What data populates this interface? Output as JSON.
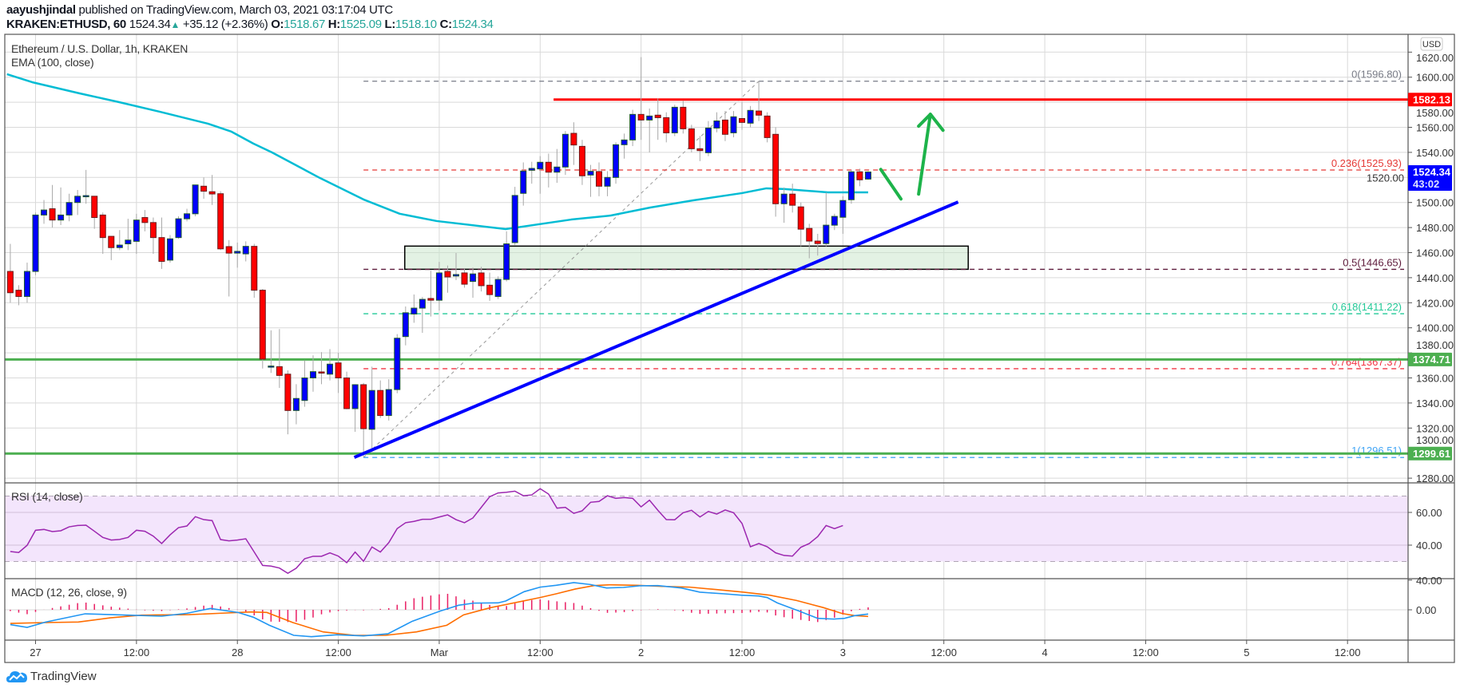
{
  "header": {
    "author": "aayushjindal",
    "published": "published on TradingView.com, March 03, 2021 03:17:04 UTC",
    "symbol": "KRAKEN:ETHUSD, 60",
    "last": "1524.34",
    "change": "+35.12 (+2.36%)",
    "o_label": "O:",
    "o": "1518.67",
    "h_label": "H:",
    "h": "1525.09",
    "l_label": "L:",
    "l": "1518.10",
    "c_label": "C:",
    "c": "1524.34"
  },
  "legend": {
    "main": "Ethereum / U.S. Dollar, 1h, KRAKEN",
    "ema": "EMA (100, close)",
    "rsi": "RSI (14, close)",
    "macd": "MACD (12, 26, close, 9)"
  },
  "currency_badge": "USD",
  "price_axis": [
    "1620.00",
    "1600.00",
    "1580.00",
    "1560.00",
    "1540.00",
    "1520.00",
    "1500.00",
    "1480.00",
    "1460.00",
    "1440.00",
    "1420.00",
    "1400.00",
    "1380.00",
    "1360.00",
    "1340.00",
    "1320.00",
    "1300.00",
    "1280.00"
  ],
  "rsi_axis": [
    "60.00",
    "40.00"
  ],
  "macd_axis": [
    "40.00",
    "0.00"
  ],
  "time_axis": [
    "27",
    "12:00",
    "28",
    "12:00",
    "Mar",
    "12:00",
    "2",
    "12:00",
    "3",
    "12:00",
    "4",
    "12:00",
    "5",
    "12:00"
  ],
  "badges": {
    "resistance": "1582.13",
    "current": "1524.34",
    "countdown": "43:02",
    "support1": "1374.71",
    "support2": "1299.61"
  },
  "fib_labels": [
    "0(1596.80)",
    "0.236(1525.93)",
    "0.5(1446.65)",
    "0.618(1411.22)",
    "0.764(1367.37)",
    "1(1296.51)"
  ],
  "logo": "TradingView",
  "colors": {
    "up": "#0000ff",
    "down": "#ff0000",
    "ema": "#00bcd4",
    "rsi": "#9c27b0",
    "macd": "#2196f3",
    "signal": "#ff6d00",
    "hist": "#e91e63",
    "green_line": "#4caf50",
    "trend": "#0000ff",
    "resistance": "#ff0000"
  },
  "chart_data": {
    "type": "candlestick",
    "title": "Ethereum / U.S. Dollar, 1h, KRAKEN",
    "ylim": [
      1270,
      1630
    ],
    "x_unit": "hours from 27 Feb 00:00 UTC",
    "first_hour": -3,
    "candles_ohlc": [
      [
        1445,
        1467,
        1420,
        1428
      ],
      [
        1430,
        1434,
        1418,
        1425
      ],
      [
        1425,
        1452,
        1420,
        1445
      ],
      [
        1445,
        1492,
        1442,
        1490
      ],
      [
        1490,
        1502,
        1483,
        1494
      ],
      [
        1495,
        1514,
        1480,
        1486
      ],
      [
        1486,
        1512,
        1482,
        1490
      ],
      [
        1490,
        1507,
        1485,
        1500
      ],
      [
        1500,
        1510,
        1490,
        1505
      ],
      [
        1505,
        1526,
        1499,
        1505.5
      ],
      [
        1505,
        1505,
        1479,
        1488
      ],
      [
        1490,
        1492,
        1459,
        1472
      ],
      [
        1473,
        1473,
        1454,
        1464
      ],
      [
        1464,
        1478,
        1462,
        1466
      ],
      [
        1467,
        1487,
        1462,
        1470
      ],
      [
        1469,
        1491,
        1459,
        1486
      ],
      [
        1488,
        1494,
        1477,
        1484
      ],
      [
        1484,
        1488,
        1459,
        1472
      ],
      [
        1472,
        1488,
        1447,
        1453
      ],
      [
        1454,
        1474,
        1452,
        1471
      ],
      [
        1472,
        1489,
        1471,
        1487
      ],
      [
        1487,
        1495,
        1485,
        1491
      ],
      [
        1491,
        1514,
        1489,
        1514
      ],
      [
        1513,
        1520,
        1503,
        1509
      ],
      [
        1508.6,
        1522,
        1498,
        1506.8
      ],
      [
        1507,
        1509,
        1462,
        1463
      ],
      [
        1464.8,
        1470,
        1425,
        1459.6
      ],
      [
        1459.6,
        1468,
        1448,
        1461
      ],
      [
        1459,
        1469,
        1453,
        1465
      ],
      [
        1465,
        1467,
        1424,
        1430
      ],
      [
        1430,
        1431,
        1367.5,
        1375
      ],
      [
        1369,
        1398,
        1364,
        1369.5
      ],
      [
        1369,
        1399,
        1352,
        1362
      ],
      [
        1363,
        1366,
        1315,
        1334
      ],
      [
        1334,
        1355,
        1323,
        1343.6
      ],
      [
        1342,
        1374,
        1337,
        1360
      ],
      [
        1360,
        1378,
        1349,
        1365
      ],
      [
        1364.8,
        1380.6,
        1355,
        1364.5
      ],
      [
        1363,
        1383,
        1358,
        1371
      ],
      [
        1372,
        1380,
        1348,
        1360
      ],
      [
        1360,
        1365,
        1335,
        1335.5
      ],
      [
        1335.5,
        1355,
        1317,
        1354.6
      ],
      [
        1354.6,
        1356,
        1296.5,
        1319.5
      ],
      [
        1319,
        1369,
        1300,
        1350
      ],
      [
        1350,
        1358,
        1328,
        1330
      ],
      [
        1330,
        1359,
        1326,
        1350.7
      ],
      [
        1350.7,
        1395,
        1347.8,
        1391.7
      ],
      [
        1393,
        1417,
        1386,
        1412
      ],
      [
        1411,
        1426.6,
        1404,
        1415.7
      ],
      [
        1415.7,
        1424.6,
        1396,
        1422.7
      ],
      [
        1423.4,
        1445.5,
        1409,
        1422
      ],
      [
        1422,
        1452.6,
        1413.8,
        1443.8
      ],
      [
        1445,
        1449.7,
        1428,
        1440.6
      ],
      [
        1441.3,
        1459.7,
        1438,
        1442.5
      ],
      [
        1443.8,
        1447,
        1432,
        1434.8
      ],
      [
        1437,
        1448,
        1424,
        1443
      ],
      [
        1443.8,
        1448.7,
        1429,
        1433.6
      ],
      [
        1434,
        1444,
        1421.5,
        1426.5
      ],
      [
        1425,
        1441,
        1423,
        1438.6
      ],
      [
        1438.6,
        1477,
        1437,
        1467
      ],
      [
        1468,
        1512.5,
        1466,
        1505.6
      ],
      [
        1507.3,
        1532,
        1497.5,
        1525.1
      ],
      [
        1525.7,
        1532.5,
        1515,
        1527.2
      ],
      [
        1526.8,
        1537,
        1507,
        1532.1
      ],
      [
        1532.1,
        1539,
        1512,
        1524.2
      ],
      [
        1524.2,
        1542.7,
        1515.7,
        1528.3
      ],
      [
        1528.3,
        1557,
        1522,
        1554.4
      ],
      [
        1555.2,
        1564,
        1530,
        1545.9
      ],
      [
        1544.8,
        1550,
        1514,
        1521.3
      ],
      [
        1521.9,
        1530,
        1504.5,
        1524.9
      ],
      [
        1524.7,
        1532,
        1505,
        1513
      ],
      [
        1513,
        1525,
        1505,
        1520
      ],
      [
        1520,
        1548,
        1515,
        1546.1
      ],
      [
        1546.1,
        1555,
        1535,
        1549.9
      ],
      [
        1549.9,
        1574,
        1545,
        1570.3
      ],
      [
        1570.3,
        1616,
        1550,
        1565.8
      ],
      [
        1565.8,
        1575,
        1540,
        1569
      ],
      [
        1569.7,
        1583,
        1550,
        1567.7
      ],
      [
        1567.7,
        1572,
        1548,
        1555.6
      ],
      [
        1555.6,
        1578,
        1553,
        1576
      ],
      [
        1576,
        1581,
        1555,
        1558.8
      ],
      [
        1558.8,
        1562,
        1540,
        1542.9
      ],
      [
        1542.9,
        1553,
        1533,
        1541.4
      ],
      [
        1539.7,
        1565,
        1537,
        1559.4
      ],
      [
        1559.4,
        1572,
        1556,
        1565.1
      ],
      [
        1565.8,
        1573,
        1549,
        1554.4
      ],
      [
        1555.6,
        1573,
        1552,
        1568.4
      ],
      [
        1567,
        1580,
        1558,
        1563.9
      ],
      [
        1563.3,
        1577,
        1560,
        1573.5
      ],
      [
        1573,
        1596.8,
        1565,
        1569.7
      ],
      [
        1569,
        1572,
        1548,
        1551.8
      ],
      [
        1554.4,
        1560,
        1488.7,
        1499
      ],
      [
        1499,
        1512,
        1483.8,
        1506.7
      ],
      [
        1506.7,
        1515,
        1492,
        1497.8
      ],
      [
        1496.5,
        1500,
        1465,
        1478.7
      ],
      [
        1479.3,
        1483,
        1455.5,
        1469.2
      ],
      [
        1469.2,
        1475,
        1457.6,
        1467.2
      ],
      [
        1467.2,
        1508,
        1465,
        1481.9
      ],
      [
        1481.9,
        1491,
        1478,
        1488.9
      ],
      [
        1488.2,
        1505,
        1475,
        1501.6
      ],
      [
        1502.2,
        1526,
        1499,
        1524.5
      ],
      [
        1524.5,
        1527,
        1513,
        1518.1
      ],
      [
        1518.67,
        1525.09,
        1518.1,
        1524.34
      ]
    ],
    "ema100": [
      [
        -3.4,
        1602.4
      ],
      [
        -0.4,
        1596
      ],
      [
        5.3,
        1587
      ],
      [
        10,
        1580
      ],
      [
        14.8,
        1572.4
      ],
      [
        20.5,
        1562.9
      ],
      [
        23.3,
        1556.5
      ],
      [
        25.9,
        1547
      ],
      [
        28.1,
        1540
      ],
      [
        33.8,
        1519.6
      ],
      [
        39,
        1502.4
      ],
      [
        43.3,
        1491
      ],
      [
        47.7,
        1485.2
      ],
      [
        55.9,
        1478.8
      ],
      [
        63.7,
        1486.4
      ],
      [
        68.4,
        1489.6
      ],
      [
        73.1,
        1496
      ],
      [
        78.2,
        1501.7
      ],
      [
        84,
        1507.5
      ],
      [
        86.9,
        1511.3
      ],
      [
        89.1,
        1510.7
      ],
      [
        94.2,
        1508.1
      ],
      [
        99,
        1508.1
      ]
    ],
    "fib_levels": [
      {
        "ratio": 0,
        "price": 1596.8,
        "color": "#787b86"
      },
      {
        "ratio": 0.236,
        "price": 1525.93,
        "color": "#e53935"
      },
      {
        "ratio": 0.5,
        "price": 1446.65,
        "color": "#5d1a3a"
      },
      {
        "ratio": 0.618,
        "price": 1411.22,
        "color": "#22c997"
      },
      {
        "ratio": 0.764,
        "price": 1367.37,
        "color": "#f23645"
      },
      {
        "ratio": 1,
        "price": 1296.51,
        "color": "#42a5f5"
      }
    ],
    "fib_anchor": {
      "low": [
        39,
        1296.51
      ],
      "high": [
        86,
        1596.8
      ]
    },
    "horizontal_lines": [
      {
        "price": 1582.13,
        "from_hour": 61.6,
        "kind": "resistance"
      },
      {
        "price": 1374.71,
        "kind": "support"
      },
      {
        "price": 1299.61,
        "kind": "support"
      }
    ],
    "trend_line": [
      [
        37.9,
        1296.6
      ],
      [
        109.7,
        1500.4
      ]
    ],
    "support_zone": {
      "from_hour": 43.9,
      "to_hour": 110.9,
      "low": 1446.7,
      "high": 1465.2
    },
    "arrows": {
      "down_stroke": [
        [
          100.5,
          1526.4
        ],
        [
          102.9,
          1502.8
        ]
      ],
      "up_shaft": [
        [
          105,
          1506.7
        ],
        [
          106.4,
          1570.4
        ]
      ],
      "up_head": [
        [
          105,
          1560.9
        ],
        [
          106.4,
          1570.4
        ],
        [
          107.9,
          1557.6
        ]
      ]
    },
    "rsi": {
      "band": [
        30,
        70
      ],
      "first_hour": -3,
      "values": [
        36.1,
        35.5,
        39.9,
        49.1,
        49.6,
        48.3,
        48.8,
        51.2,
        52,
        52.2,
        48.5,
        44.7,
        43.1,
        43.5,
        44.7,
        49.1,
        48.5,
        45.5,
        41,
        46.3,
        50.7,
        51.7,
        57.4,
        55.6,
        55,
        43.4,
        42.6,
        43.1,
        43.9,
        35.8,
        27.6,
        27.2,
        26,
        22.8,
        25.9,
        31.7,
        33.2,
        33.2,
        35.3,
        33.3,
        29.3,
        35.8,
        30.1,
        38.9,
        35.8,
        41.5,
        50.1,
        53.7,
        54.5,
        55.8,
        55.8,
        57.2,
        58.5,
        55.6,
        53.7,
        56.6,
        63.1,
        69.6,
        71.9,
        72.3,
        73,
        70.2,
        70.7,
        74.5,
        71.2,
        62.6,
        63.1,
        59.4,
        61,
        66.2,
        66.7,
        70.2,
        68.6,
        69.1,
        68.6,
        63.4,
        67.5,
        61.3,
        55.6,
        55.5,
        59.8,
        61.3,
        57.2,
        60.6,
        59,
        61.5,
        59.8,
        53.3,
        39,
        41,
        39,
        35.3,
        33.7,
        33.3,
        38.7,
        41,
        45.2,
        52,
        50.1,
        52
      ]
    },
    "macd": {
      "params": "12, 26, close, 9",
      "macd_line": [
        [
          -3,
          -20
        ],
        [
          -1,
          -23.7
        ],
        [
          1.2,
          -16.5
        ],
        [
          5.9,
          -5.4
        ],
        [
          11,
          -7.2
        ],
        [
          15,
          -8.6
        ],
        [
          18,
          -4.7
        ],
        [
          20.8,
          1.8
        ],
        [
          24.1,
          -3.6
        ],
        [
          25.9,
          -10
        ],
        [
          27.8,
          -20.8
        ],
        [
          30.7,
          -34.4
        ],
        [
          32.8,
          -36.2
        ],
        [
          35.8,
          -33.7
        ],
        [
          39,
          -35.1
        ],
        [
          41.9,
          -32.3
        ],
        [
          44.8,
          -15.4
        ],
        [
          48.1,
          -1.8
        ],
        [
          50.3,
          6.1
        ],
        [
          52.1,
          9
        ],
        [
          55,
          9.3
        ],
        [
          55.9,
          11.8
        ],
        [
          58.1,
          24.4
        ],
        [
          60,
          30.5
        ],
        [
          61.9,
          33
        ],
        [
          64,
          36.6
        ],
        [
          66,
          34
        ],
        [
          67.9,
          29.4
        ],
        [
          69.9,
          30.1
        ],
        [
          71.8,
          32.3
        ],
        [
          74,
          32.6
        ],
        [
          76.8,
          29.4
        ],
        [
          79,
          23.7
        ],
        [
          81.9,
          21.5
        ],
        [
          83.9,
          19.7
        ],
        [
          86,
          18.6
        ],
        [
          87,
          16.5
        ],
        [
          88.2,
          9.3
        ],
        [
          90.8,
          -1.8
        ],
        [
          93,
          -11.5
        ],
        [
          94.9,
          -12.5
        ],
        [
          96.2,
          -11.5
        ],
        [
          97.4,
          -7.9
        ],
        [
          99,
          -5.7
        ]
      ],
      "signal_line": [
        [
          -3,
          -18.3
        ],
        [
          1.2,
          -17.2
        ],
        [
          5.1,
          -16.5
        ],
        [
          8.9,
          -10.8
        ],
        [
          12.6,
          -7.2
        ],
        [
          18.3,
          -6.5
        ],
        [
          21.9,
          -4.7
        ],
        [
          25.6,
          -2.9
        ],
        [
          27.5,
          -3.6
        ],
        [
          30.6,
          -17.2
        ],
        [
          34.2,
          -29.8
        ],
        [
          37.9,
          -34.4
        ],
        [
          41.6,
          -34.4
        ],
        [
          45.3,
          -29.8
        ],
        [
          48.9,
          -20.8
        ],
        [
          50.9,
          -6.8
        ],
        [
          54.1,
          2.9
        ],
        [
          57.2,
          10
        ],
        [
          60,
          16.5
        ],
        [
          61.9,
          21.5
        ],
        [
          64.2,
          28
        ],
        [
          66.4,
          32.6
        ],
        [
          68.3,
          33.7
        ],
        [
          71.5,
          33
        ],
        [
          74.6,
          31.5
        ],
        [
          77.8,
          30.5
        ],
        [
          81,
          27.2
        ],
        [
          84.2,
          23.7
        ],
        [
          87.3,
          19.7
        ],
        [
          90.5,
          12.5
        ],
        [
          93.7,
          2.9
        ],
        [
          95.9,
          -5
        ],
        [
          97.4,
          -7.9
        ],
        [
          99,
          -9
        ]
      ]
    }
  }
}
